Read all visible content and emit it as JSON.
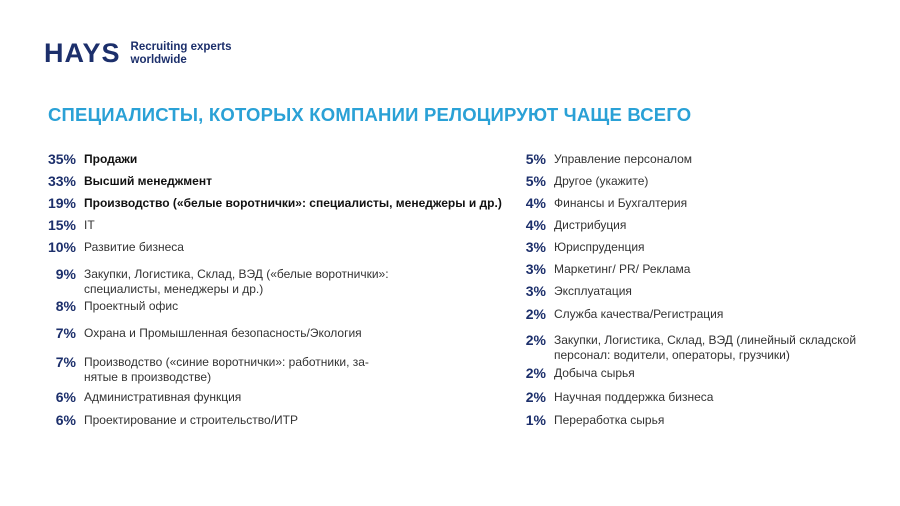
{
  "logo": {
    "brand": "HAYS",
    "tagline_1": "Recruiting experts",
    "tagline_2": "worldwide"
  },
  "title": "СПЕЦИАЛИСТЫ, КОТОРЫХ КОМПАНИИ РЕЛОЦИРУЮТ ЧАЩЕ ВСЕГО",
  "left": [
    {
      "pct": "35%",
      "label": "Продажи",
      "bold": true
    },
    {
      "pct": "33%",
      "label": "Высший менеджмент",
      "bold": true
    },
    {
      "pct": "19%",
      "label": "Производство («белые воротнички»: специалисты, менеджеры и др.)",
      "bold": true
    },
    {
      "pct": "15%",
      "label": "IT"
    },
    {
      "pct": "10%",
      "label": "Развитие бизнеса"
    },
    {
      "pct": "9%",
      "label_1": "Закупки, Логистика, Склад, ВЭД («белые воротнички»:",
      "label_2": "специалисты, менеджеры и др.)"
    },
    {
      "pct": "8%",
      "label": "Проектный офис"
    },
    {
      "pct": "7%",
      "label": "Охрана и Промышленная безопасность/Экология"
    },
    {
      "pct": "7%",
      "label_1": "Производство («синие воротнички»: работники, за-",
      "label_2": "нятые в производстве)"
    },
    {
      "pct": "6%",
      "label": "Административная функция"
    },
    {
      "pct": "6%",
      "label": "Проектирование и строительство/ИТР"
    }
  ],
  "right": [
    {
      "pct": "5%",
      "label": "Управление персоналом"
    },
    {
      "pct": "5%",
      "label": "Другое (укажите)"
    },
    {
      "pct": "4%",
      "label": "Финансы и Бухгалтерия"
    },
    {
      "pct": "4%",
      "label": "Дистрибуция"
    },
    {
      "pct": "3%",
      "label": "Юриспруденция"
    },
    {
      "pct": "3%",
      "label": "Маркетинг/ PR/ Реклама"
    },
    {
      "pct": "3%",
      "label": "Эксплуатация"
    },
    {
      "pct": "2%",
      "label": "Служба качества/Регистрация"
    },
    {
      "pct": "2%",
      "label_1": "Закупки, Логистика, Склад, ВЭД (линейный складской",
      "label_2": "персонал: водители, операторы, грузчики)"
    },
    {
      "pct": "2%",
      "label": "Добыча сырья"
    },
    {
      "pct": "2%",
      "label": "Научная поддержка бизнеса"
    },
    {
      "pct": "1%",
      "label": "Переработка сырья"
    }
  ]
}
